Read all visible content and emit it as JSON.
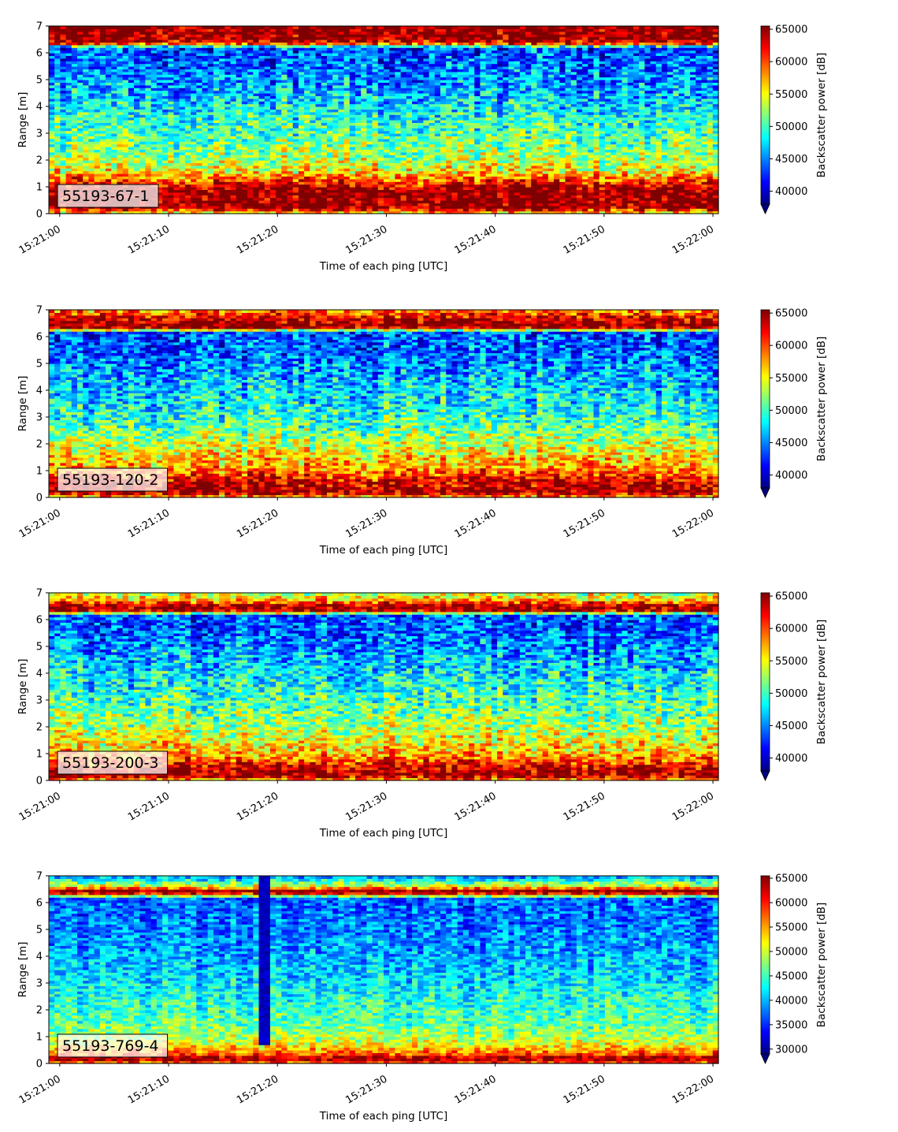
{
  "figure": {
    "colormap": "jet",
    "colormap_stops": [
      "#00007f",
      "#0000ff",
      "#007fff",
      "#00ffff",
      "#7fff7f",
      "#ffff00",
      "#ff7f00",
      "#ff0000",
      "#7f0000"
    ]
  },
  "chart_data": [
    {
      "type": "heatmap",
      "label": "55193-67-1",
      "xlabel": "Time of each ping [UTC]",
      "ylabel": "Range [m]",
      "xlim": [
        "15:20:59",
        "15:22:00.5"
      ],
      "ylim": [
        0,
        7
      ],
      "x_ticks": [
        "15:21:00",
        "15:21:10",
        "15:21:20",
        "15:21:30",
        "15:21:40",
        "15:21:50",
        "15:22:00"
      ],
      "y_ticks": [
        "0",
        "1",
        "2",
        "3",
        "4",
        "5",
        "6",
        "7"
      ],
      "colorbar": {
        "label": "Backscatter power [dB]",
        "range": [
          38000,
          65500
        ],
        "ticks": [
          "40000",
          "45000",
          "50000",
          "55000",
          "60000",
          "65000"
        ],
        "extend": "min"
      },
      "profile": [
        {
          "range": 0.0,
          "value": 55000
        },
        {
          "range": 0.25,
          "value": 65500
        },
        {
          "range": 0.9,
          "value": 65500
        },
        {
          "range": 1.2,
          "value": 61000
        },
        {
          "range": 1.6,
          "value": 55500
        },
        {
          "range": 2.2,
          "value": 52500
        },
        {
          "range": 3.5,
          "value": 49500
        },
        {
          "range": 4.5,
          "value": 46500
        },
        {
          "range": 5.5,
          "value": 44500
        },
        {
          "range": 6.2,
          "value": 43500
        },
        {
          "range": 6.35,
          "value": 60000
        },
        {
          "range": 6.5,
          "value": 65500
        },
        {
          "range": 7.0,
          "value": 65500
        }
      ]
    },
    {
      "type": "heatmap",
      "label": "55193-120-2",
      "xlabel": "Time of each ping [UTC]",
      "ylabel": "Range [m]",
      "xlim": [
        "15:20:59",
        "15:22:00.5"
      ],
      "ylim": [
        0,
        7
      ],
      "x_ticks": [
        "15:21:00",
        "15:21:10",
        "15:21:20",
        "15:21:30",
        "15:21:40",
        "15:21:50",
        "15:22:00"
      ],
      "y_ticks": [
        "0",
        "1",
        "2",
        "3",
        "4",
        "5",
        "6",
        "7"
      ],
      "colorbar": {
        "label": "Backscatter power [dB]",
        "range": [
          38000,
          65500
        ],
        "ticks": [
          "40000",
          "45000",
          "50000",
          "55000",
          "60000",
          "65000"
        ],
        "extend": "min"
      },
      "profile": [
        {
          "range": 0.0,
          "value": 56000
        },
        {
          "range": 0.2,
          "value": 65500
        },
        {
          "range": 0.6,
          "value": 63000
        },
        {
          "range": 1.0,
          "value": 59000
        },
        {
          "range": 1.8,
          "value": 54500
        },
        {
          "range": 3.0,
          "value": 49500
        },
        {
          "range": 4.5,
          "value": 46500
        },
        {
          "range": 5.5,
          "value": 44000
        },
        {
          "range": 6.2,
          "value": 43500
        },
        {
          "range": 6.3,
          "value": 63000
        },
        {
          "range": 6.45,
          "value": 65500
        },
        {
          "range": 6.7,
          "value": 63500
        },
        {
          "range": 7.0,
          "value": 58000
        }
      ]
    },
    {
      "type": "heatmap",
      "label": "55193-200-3",
      "xlabel": "Time of each ping [UTC]",
      "ylabel": "Range [m]",
      "xlim": [
        "15:20:59",
        "15:22:00.5"
      ],
      "ylim": [
        0,
        7
      ],
      "x_ticks": [
        "15:21:00",
        "15:21:10",
        "15:21:20",
        "15:21:30",
        "15:21:40",
        "15:21:50",
        "15:22:00"
      ],
      "y_ticks": [
        "0",
        "1",
        "2",
        "3",
        "4",
        "5",
        "6",
        "7"
      ],
      "colorbar": {
        "label": "Backscatter power [dB]",
        "range": [
          38000,
          65500
        ],
        "ticks": [
          "40000",
          "45000",
          "50000",
          "55000",
          "60000",
          "65000"
        ],
        "extend": "min"
      },
      "profile": [
        {
          "range": 0.0,
          "value": 56000
        },
        {
          "range": 0.2,
          "value": 65500
        },
        {
          "range": 0.5,
          "value": 63000
        },
        {
          "range": 1.0,
          "value": 57000
        },
        {
          "range": 2.0,
          "value": 53000
        },
        {
          "range": 3.0,
          "value": 50000
        },
        {
          "range": 4.5,
          "value": 46500
        },
        {
          "range": 5.5,
          "value": 44000
        },
        {
          "range": 6.2,
          "value": 43500
        },
        {
          "range": 6.3,
          "value": 63000
        },
        {
          "range": 6.5,
          "value": 65500
        },
        {
          "range": 6.7,
          "value": 58000
        },
        {
          "range": 7.0,
          "value": 53000
        }
      ]
    },
    {
      "type": "heatmap",
      "label": "55193-769-4",
      "xlabel": "Time of each ping [UTC]",
      "ylabel": "Range [m]",
      "xlim": [
        "15:20:59",
        "15:22:00.5"
      ],
      "ylim": [
        0,
        7
      ],
      "x_ticks": [
        "15:21:00",
        "15:21:10",
        "15:21:20",
        "15:21:30",
        "15:21:40",
        "15:21:50",
        "15:22:00"
      ],
      "y_ticks": [
        "0",
        "1",
        "2",
        "3",
        "4",
        "5",
        "6",
        "7"
      ],
      "colorbar": {
        "label": "Backscatter power [dB]",
        "range": [
          29000,
          65500
        ],
        "ticks": [
          "30000",
          "35000",
          "40000",
          "45000",
          "50000",
          "55000",
          "60000",
          "65000"
        ],
        "extend": "min"
      },
      "profile": [
        {
          "range": 0.0,
          "value": 56000
        },
        {
          "range": 0.2,
          "value": 65500
        },
        {
          "range": 0.35,
          "value": 58000
        },
        {
          "range": 0.8,
          "value": 50000
        },
        {
          "range": 1.5,
          "value": 46000
        },
        {
          "range": 2.5,
          "value": 43500
        },
        {
          "range": 3.5,
          "value": 40500
        },
        {
          "range": 5.0,
          "value": 38000
        },
        {
          "range": 6.2,
          "value": 37000
        },
        {
          "range": 6.3,
          "value": 58000
        },
        {
          "range": 6.45,
          "value": 65500
        },
        {
          "range": 6.6,
          "value": 52000
        },
        {
          "range": 7.0,
          "value": 37500
        }
      ],
      "dropout": {
        "time_from": "15:21:18.5",
        "time_to": "15:21:19.5",
        "range_from": 0.75,
        "range_to": 7.0,
        "value": 30000
      }
    }
  ]
}
